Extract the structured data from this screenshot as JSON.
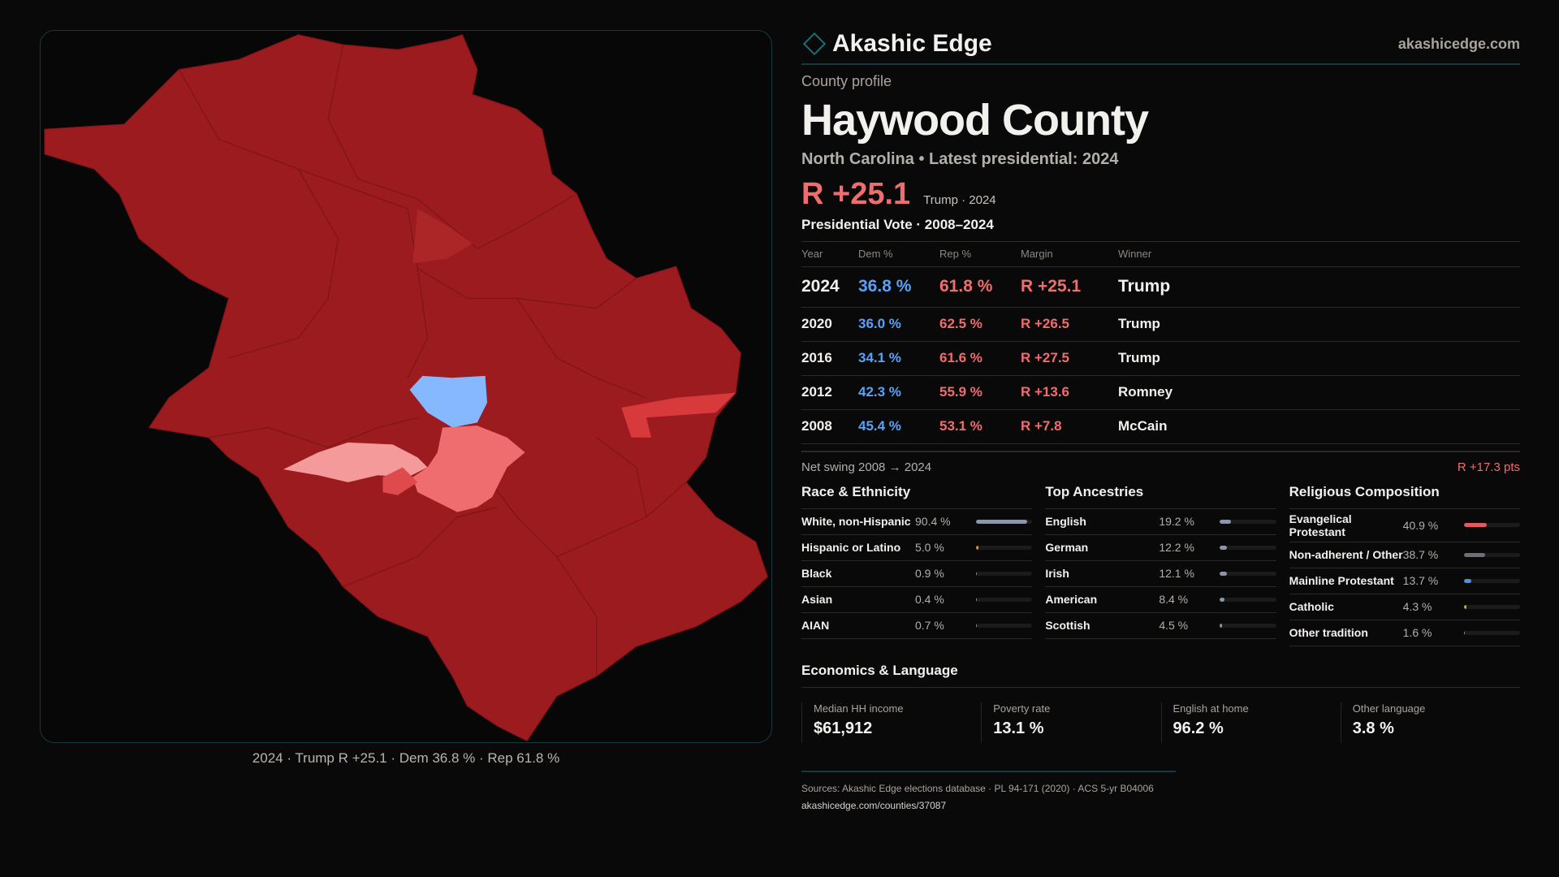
{
  "brand": {
    "name": "Akashic Edge",
    "site": "akashicedge.com"
  },
  "profile": {
    "kicker": "County profile",
    "county": "Haywood County",
    "subtitle": "North Carolina • Latest presidential: 2024",
    "margin": "R +25.1",
    "margin_note": "Trump · 2024"
  },
  "votes": {
    "title": "Presidential Vote · 2008–2024",
    "headers": [
      "Year",
      "Dem %",
      "Rep %",
      "Margin",
      "Winner"
    ],
    "rows": [
      {
        "year": "2024",
        "dem": "36.8 %",
        "rep": "61.8 %",
        "margin": "R +25.1",
        "winner": "Trump"
      },
      {
        "year": "2020",
        "dem": "36.0 %",
        "rep": "62.5 %",
        "margin": "R +26.5",
        "winner": "Trump"
      },
      {
        "year": "2016",
        "dem": "34.1 %",
        "rep": "61.6 %",
        "margin": "R +27.5",
        "winner": "Trump"
      },
      {
        "year": "2012",
        "dem": "42.3 %",
        "rep": "55.9 %",
        "margin": "R +13.6",
        "winner": "Romney"
      },
      {
        "year": "2008",
        "dem": "45.4 %",
        "rep": "53.1 %",
        "margin": "R +7.8",
        "winner": "McCain"
      }
    ],
    "swing_label": "Net swing 2008 → 2024",
    "swing_value": "R +17.3 pts"
  },
  "race": {
    "title": "Race & Ethnicity",
    "items": [
      {
        "label": "White, non-Hispanic",
        "pct": "90.4 %",
        "value": 90.4,
        "color": "#8a97aa"
      },
      {
        "label": "Hispanic or Latino",
        "pct": "5.0 %",
        "value": 5.0,
        "color": "#d99a1c"
      },
      {
        "label": "Black",
        "pct": "0.9 %",
        "value": 0.9,
        "color": "#8a97aa"
      },
      {
        "label": "Asian",
        "pct": "0.4 %",
        "value": 0.4,
        "color": "#8a97aa"
      },
      {
        "label": "AIAN",
        "pct": "0.7 %",
        "value": 0.7,
        "color": "#8a97aa"
      }
    ]
  },
  "ancestry": {
    "title": "Top Ancestries",
    "items": [
      {
        "label": "English",
        "pct": "19.2 %",
        "value": 19.2,
        "color": "#8a97aa"
      },
      {
        "label": "German",
        "pct": "12.2 %",
        "value": 12.2,
        "color": "#8a97aa"
      },
      {
        "label": "Irish",
        "pct": "12.1 %",
        "value": 12.1,
        "color": "#8a97aa"
      },
      {
        "label": "American",
        "pct": "8.4 %",
        "value": 8.4,
        "color": "#8a97aa"
      },
      {
        "label": "Scottish",
        "pct": "4.5 %",
        "value": 4.5,
        "color": "#8a97aa"
      }
    ]
  },
  "religion": {
    "title": "Religious Composition",
    "items": [
      {
        "label": "Evangelical Protestant",
        "pct": "40.9 %",
        "value": 40.9,
        "color": "#e05a5f"
      },
      {
        "label": "Non-adherent / Other",
        "pct": "38.7 %",
        "value": 38.7,
        "color": "#6b6f7a"
      },
      {
        "label": "Mainline Protestant",
        "pct": "13.7 %",
        "value": 13.7,
        "color": "#4a8fe0"
      },
      {
        "label": "Catholic",
        "pct": "4.3 %",
        "value": 4.3,
        "color": "#d9a21c"
      },
      {
        "label": "Other tradition",
        "pct": "1.6 %",
        "value": 1.6,
        "color": "#8a97aa"
      }
    ]
  },
  "economics": {
    "title": "Economics & Language",
    "stats": [
      {
        "label": "Median HH income",
        "value": "$61,912"
      },
      {
        "label": "Poverty rate",
        "value": "13.1 %"
      },
      {
        "label": "English at home",
        "value": "96.2 %"
      },
      {
        "label": "Other language",
        "value": "3.8 %"
      }
    ]
  },
  "footer": {
    "sources": "Sources: Akashic Edge elections database · PL 94-171 (2020) · ACS 5-yr B04006",
    "url": "akashicedge.com/counties/37087"
  },
  "map": {
    "caption": "2024 · Trump R +25.1 · Dem 36.8 % · Rep 61.8 %"
  }
}
